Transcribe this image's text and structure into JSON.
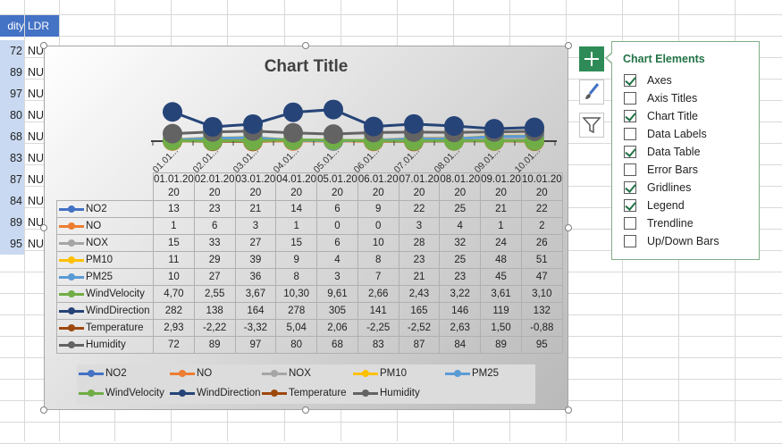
{
  "sheet": {
    "headers": [
      "dity",
      "LDR"
    ],
    "humidity_col": [
      "72",
      "89",
      "97",
      "80",
      "68",
      "83",
      "87",
      "84",
      "89",
      "95"
    ],
    "ldr_col": [
      "NU",
      "NU",
      "NU",
      "NU",
      "NU",
      "NU",
      "NU",
      "NU",
      "NU",
      "NU"
    ]
  },
  "chart": {
    "title": "Chart Title",
    "axis_labels": [
      "01.01...",
      "02.01...",
      "03.01...",
      "04.01...",
      "05.01...",
      "06.01...",
      "07.01...",
      "08.01...",
      "09.01...",
      "10.01..."
    ],
    "dates_line1": [
      "01.01.20",
      "02.01.20",
      "03.01.20",
      "04.01.20",
      "05.01.20",
      "06.01.20",
      "07.01.20",
      "08.01.20",
      "09.01.20",
      "10.01.20"
    ],
    "dates_line2": [
      "20",
      "20",
      "20",
      "20",
      "20",
      "20",
      "20",
      "20",
      "20",
      "20"
    ]
  },
  "chart_data": {
    "type": "table",
    "title": "Chart Title",
    "categories": [
      "01.01.2020",
      "02.01.2020",
      "03.01.2020",
      "04.01.2020",
      "05.01.2020",
      "06.01.2020",
      "07.01.2020",
      "08.01.2020",
      "09.01.2020",
      "10.01.2020"
    ],
    "legend_position": "bottom",
    "series": [
      {
        "name": "NO2",
        "color": "#4472c4",
        "display": [
          "13",
          "23",
          "21",
          "14",
          "6",
          "9",
          "22",
          "25",
          "21",
          "22"
        ],
        "values": [
          13,
          23,
          21,
          14,
          6,
          9,
          22,
          25,
          21,
          22
        ]
      },
      {
        "name": "NO",
        "color": "#ed7d31",
        "display": [
          "1",
          "6",
          "3",
          "1",
          "0",
          "0",
          "3",
          "4",
          "1",
          "2"
        ],
        "values": [
          1,
          6,
          3,
          1,
          0,
          0,
          3,
          4,
          1,
          2
        ]
      },
      {
        "name": "NOX",
        "color": "#a5a5a5",
        "display": [
          "15",
          "33",
          "27",
          "15",
          "6",
          "10",
          "28",
          "32",
          "24",
          "26"
        ],
        "values": [
          15,
          33,
          27,
          15,
          6,
          10,
          28,
          32,
          24,
          26
        ]
      },
      {
        "name": "PM10",
        "color": "#ffc000",
        "display": [
          "11",
          "29",
          "39",
          "9",
          "4",
          "8",
          "23",
          "25",
          "48",
          "51"
        ],
        "values": [
          11,
          29,
          39,
          9,
          4,
          8,
          23,
          25,
          48,
          51
        ]
      },
      {
        "name": "PM25",
        "color": "#5b9bd5",
        "display": [
          "10",
          "27",
          "36",
          "8",
          "3",
          "7",
          "21",
          "23",
          "45",
          "47"
        ],
        "values": [
          10,
          27,
          36,
          8,
          3,
          7,
          21,
          23,
          45,
          47
        ]
      },
      {
        "name": "WindVelocity",
        "color": "#70ad47",
        "display": [
          "4,70",
          "2,55",
          "3,67",
          "10,30",
          "9,61",
          "2,66",
          "2,43",
          "3,22",
          "3,61",
          "3,10"
        ],
        "values": [
          4.7,
          2.55,
          3.67,
          10.3,
          9.61,
          2.66,
          2.43,
          3.22,
          3.61,
          3.1
        ]
      },
      {
        "name": "WindDirection",
        "color": "#264478",
        "display": [
          "282",
          "138",
          "164",
          "278",
          "305",
          "141",
          "165",
          "146",
          "119",
          "132"
        ],
        "values": [
          282,
          138,
          164,
          278,
          305,
          141,
          165,
          146,
          119,
          132
        ]
      },
      {
        "name": "Temperature",
        "color": "#9e480e",
        "display": [
          "2,93",
          "-2,22",
          "-3,32",
          "5,04",
          "2,06",
          "-2,25",
          "-2,52",
          "2,63",
          "1,50",
          "-0,88"
        ],
        "values": [
          2.93,
          -2.22,
          -3.32,
          5.04,
          2.06,
          -2.25,
          -2.52,
          2.63,
          1.5,
          -0.88
        ]
      },
      {
        "name": "Humidity",
        "color": "#636363",
        "display": [
          "72",
          "89",
          "97",
          "80",
          "68",
          "83",
          "87",
          "84",
          "89",
          "95"
        ],
        "values": [
          72,
          89,
          97,
          80,
          68,
          83,
          87,
          84,
          89,
          95
        ]
      }
    ]
  },
  "panel": {
    "title": "Chart Elements",
    "options": [
      {
        "label": "Axes",
        "checked": true
      },
      {
        "label": "Axis Titles",
        "checked": false
      },
      {
        "label": "Chart Title",
        "checked": true
      },
      {
        "label": "Data Labels",
        "checked": false
      },
      {
        "label": "Data Table",
        "checked": true
      },
      {
        "label": "Error Bars",
        "checked": false
      },
      {
        "label": "Gridlines",
        "checked": true
      },
      {
        "label": "Legend",
        "checked": true
      },
      {
        "label": "Trendline",
        "checked": false
      },
      {
        "label": "Up/Down Bars",
        "checked": false
      }
    ]
  },
  "side_buttons": [
    {
      "icon": "plus-icon"
    },
    {
      "icon": "brush-icon"
    },
    {
      "icon": "filter-icon"
    }
  ]
}
